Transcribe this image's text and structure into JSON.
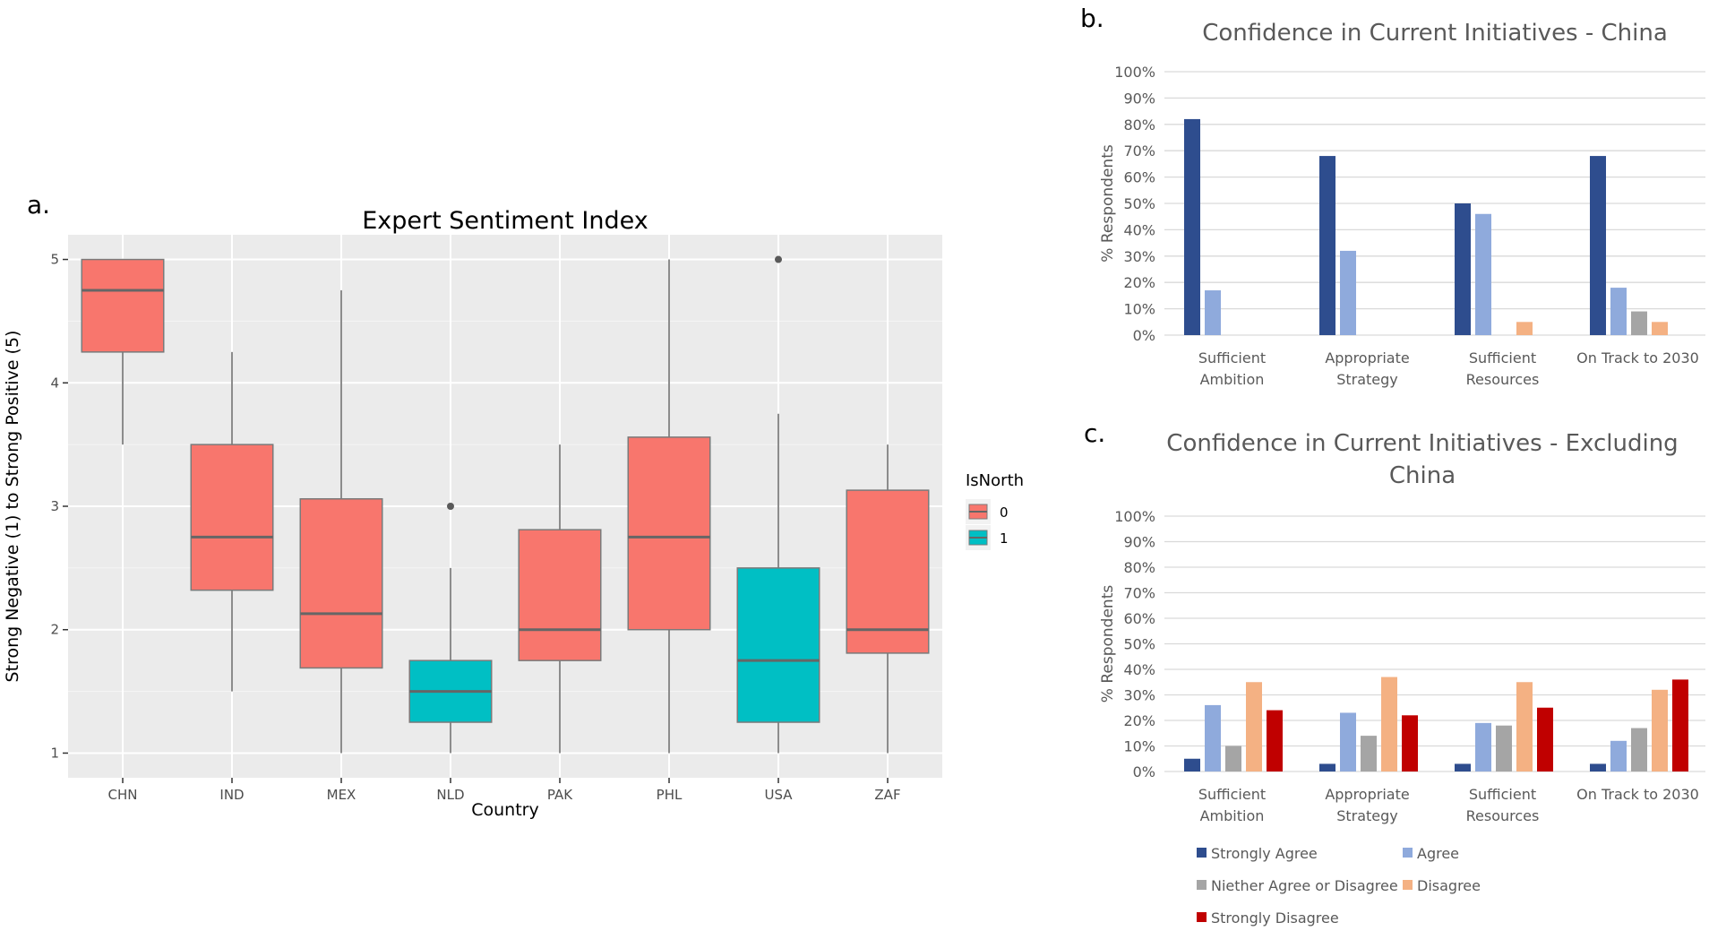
{
  "panels": {
    "a": {
      "label": "a."
    },
    "b": {
      "label": "b."
    },
    "c": {
      "label": "c."
    }
  },
  "chart_data": [
    {
      "type": "boxplot",
      "title": "Expert Sentiment Index",
      "xlabel": "Country",
      "ylabel": "Strong Negative (1) to Strong Positive (5)",
      "ylim": [
        0.8,
        5.2
      ],
      "yticks": [
        "1",
        "2",
        "3",
        "4",
        "5"
      ],
      "grid": true,
      "legend": {
        "title": "IsNorth",
        "placement": "right",
        "items": [
          {
            "label": "0",
            "color": "#F8766D"
          },
          {
            "label": "1",
            "color": "#00BFC4"
          }
        ]
      },
      "boxes": [
        {
          "category": "CHN",
          "group": "0",
          "lower": 3.5,
          "q1": 4.25,
          "median": 4.75,
          "q3": 5.0,
          "upper": 5.0,
          "outliers": []
        },
        {
          "category": "IND",
          "group": "0",
          "lower": 1.5,
          "q1": 2.32,
          "median": 2.75,
          "q3": 3.5,
          "upper": 4.25,
          "outliers": []
        },
        {
          "category": "MEX",
          "group": "0",
          "lower": 1.0,
          "q1": 1.69,
          "median": 2.13,
          "q3": 3.06,
          "upper": 4.75,
          "outliers": []
        },
        {
          "category": "NLD",
          "group": "1",
          "lower": 1.0,
          "q1": 1.25,
          "median": 1.5,
          "q3": 1.75,
          "upper": 2.5,
          "outliers": [
            3.0
          ]
        },
        {
          "category": "PAK",
          "group": "0",
          "lower": 1.0,
          "q1": 1.75,
          "median": 2.0,
          "q3": 2.81,
          "upper": 3.5,
          "outliers": []
        },
        {
          "category": "PHL",
          "group": "0",
          "lower": 1.0,
          "q1": 2.0,
          "median": 2.75,
          "q3": 3.56,
          "upper": 5.0,
          "outliers": []
        },
        {
          "category": "USA",
          "group": "1",
          "lower": 1.0,
          "q1": 1.25,
          "median": 1.75,
          "q3": 2.5,
          "upper": 3.75,
          "outliers": [
            5.0
          ]
        },
        {
          "category": "ZAF",
          "group": "0",
          "lower": 1.0,
          "q1": 1.81,
          "median": 2.0,
          "q3": 3.13,
          "upper": 3.5,
          "outliers": []
        }
      ]
    },
    {
      "type": "bar",
      "title": "Confidence in Current Initiatives - China",
      "ylabel": "% Respondents",
      "ylim": [
        0,
        100
      ],
      "yticks": [
        "0%",
        "10%",
        "20%",
        "30%",
        "40%",
        "50%",
        "60%",
        "70%",
        "80%",
        "90%",
        "100%"
      ],
      "categories": [
        [
          "Sufficient",
          "Ambition"
        ],
        [
          "Appropriate",
          "Strategy"
        ],
        [
          "Sufficient",
          "Resources"
        ],
        [
          "On Track to 2030"
        ]
      ],
      "series": [
        {
          "name": "Strongly Agree",
          "color": "#2E4D8E",
          "values": [
            82,
            68,
            50,
            68
          ]
        },
        {
          "name": "Agree",
          "color": "#8FAADC",
          "values": [
            17,
            32,
            46,
            18
          ]
        },
        {
          "name": "Niether Agree or Disagree",
          "color": "#A5A5A5",
          "values": [
            0,
            0,
            0,
            9
          ]
        },
        {
          "name": "Disagree",
          "color": "#F4B183",
          "values": [
            0,
            0,
            5,
            5
          ]
        },
        {
          "name": "Strongly Disagree",
          "color": "#C00000",
          "values": [
            0,
            0,
            0,
            0
          ]
        }
      ]
    },
    {
      "type": "bar",
      "title": [
        "Confidence in Current Initiatives - Excluding",
        "China"
      ],
      "ylabel": "% Respondents",
      "ylim": [
        0,
        100
      ],
      "yticks": [
        "0%",
        "10%",
        "20%",
        "30%",
        "40%",
        "50%",
        "60%",
        "70%",
        "80%",
        "90%",
        "100%"
      ],
      "categories": [
        [
          "Sufficient",
          "Ambition"
        ],
        [
          "Appropriate",
          "Strategy"
        ],
        [
          "Sufficient",
          "Resources"
        ],
        [
          "On Track to 2030"
        ]
      ],
      "series": [
        {
          "name": "Strongly Agree",
          "color": "#2E4D8E",
          "values": [
            5,
            3,
            3,
            3
          ]
        },
        {
          "name": "Agree",
          "color": "#8FAADC",
          "values": [
            26,
            23,
            19,
            12
          ]
        },
        {
          "name": "Niether Agree or Disagree",
          "color": "#A5A5A5",
          "values": [
            10,
            14,
            18,
            17
          ]
        },
        {
          "name": "Disagree",
          "color": "#F4B183",
          "values": [
            35,
            37,
            35,
            32
          ]
        },
        {
          "name": "Strongly Disagree",
          "color": "#C00000",
          "values": [
            24,
            22,
            25,
            36
          ]
        }
      ],
      "legend": {
        "placement": "bottom-left",
        "items": [
          "Strongly Agree",
          "Agree",
          "Niether Agree or Disagree",
          "Disagree",
          "Strongly Disagree"
        ]
      }
    }
  ]
}
